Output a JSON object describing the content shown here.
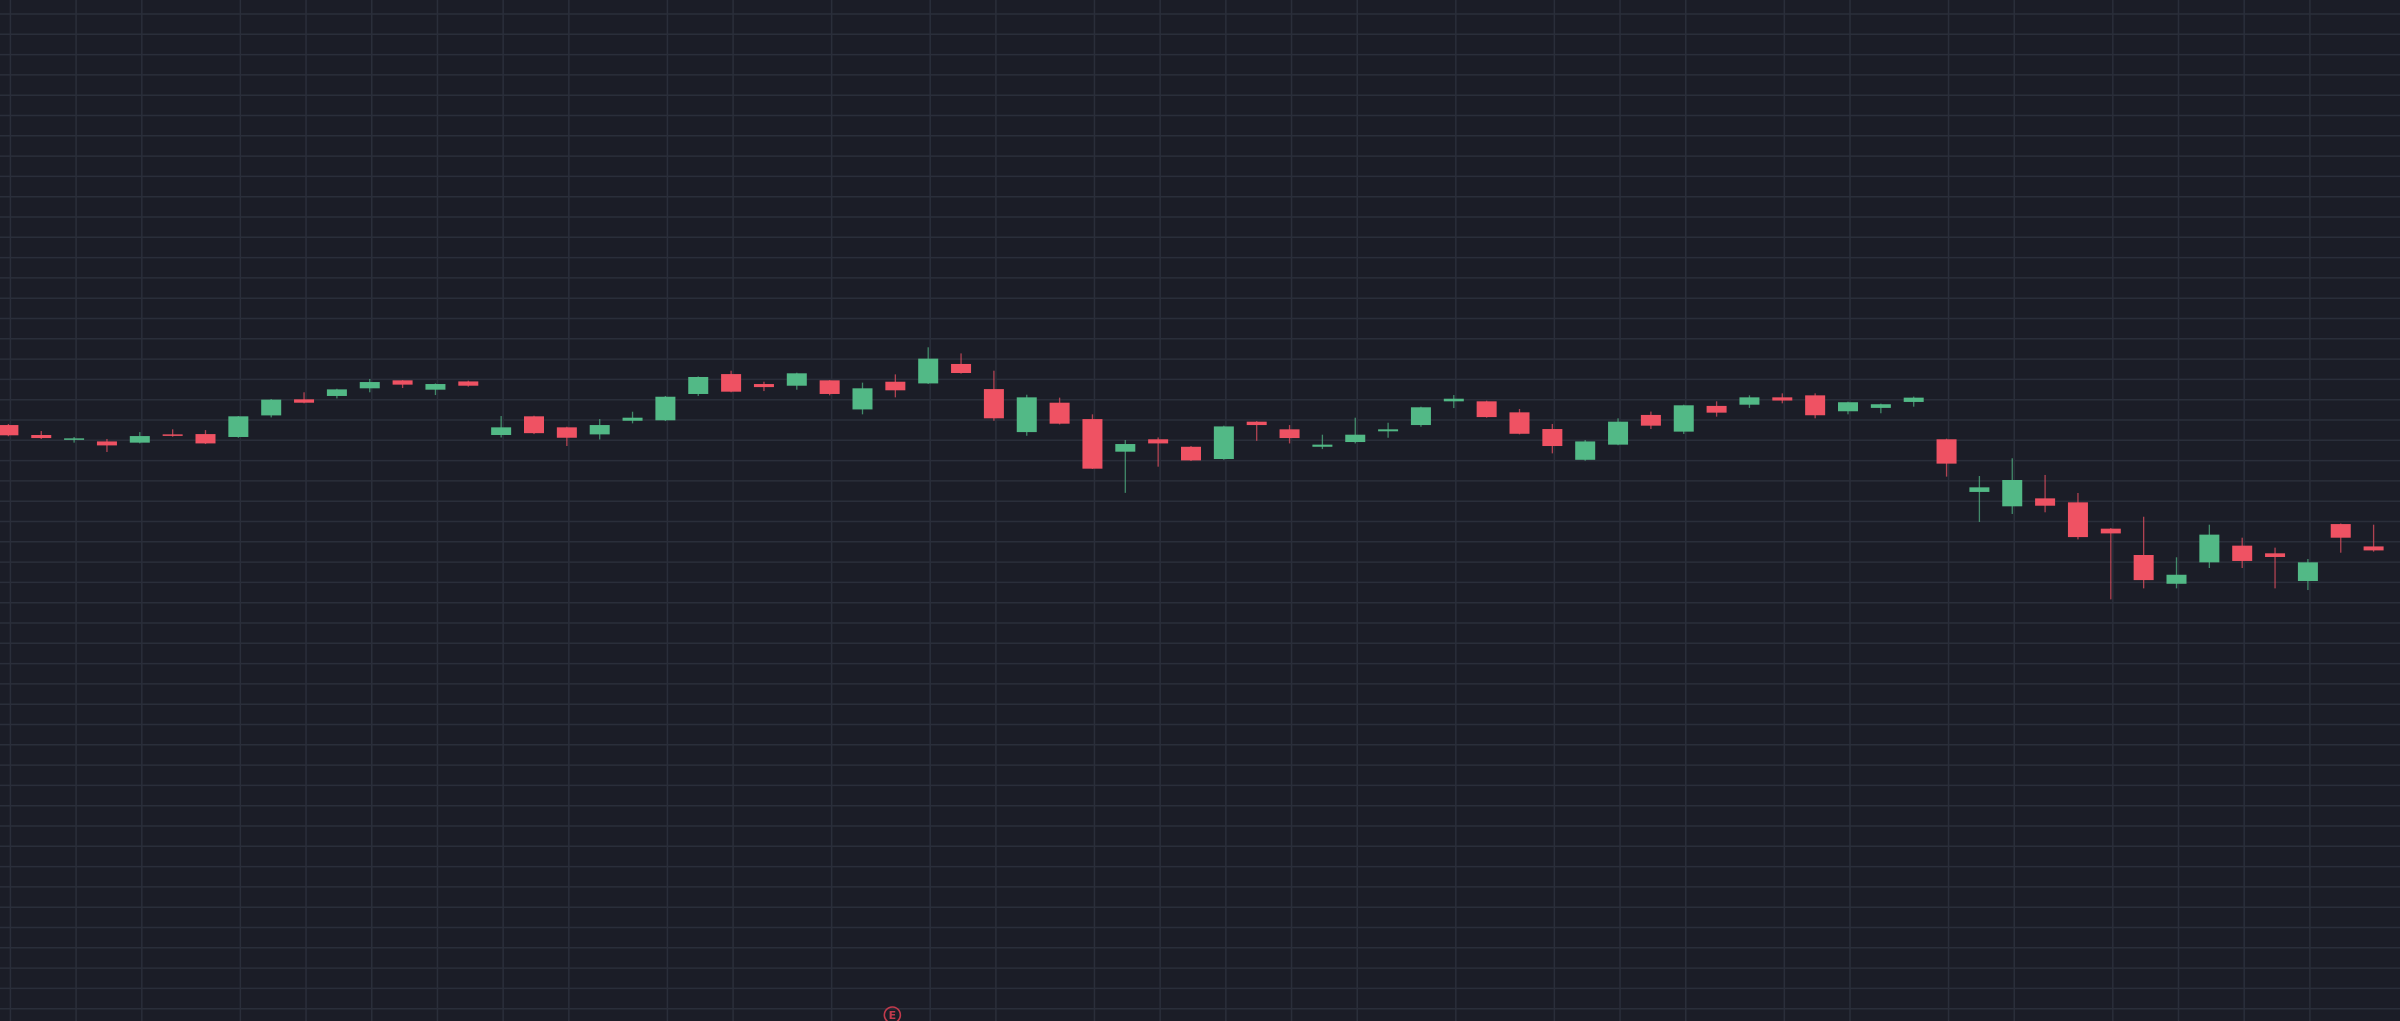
{
  "chart_data": {
    "type": "candlestick",
    "title": "",
    "xlabel": "",
    "ylabel": "",
    "grid": true,
    "axes_visible": false,
    "fields": [
      "open",
      "high",
      "low",
      "close"
    ],
    "candles": [
      [
        389.3,
        390,
        382,
        382.6
      ],
      [
        382.8,
        385.4,
        380.2,
        380.8
      ],
      [
        379.7,
        381.5,
        377.8,
        380.6
      ],
      [
        378.6,
        380.2,
        371.7,
        376
      ],
      [
        377.8,
        384.7,
        377.3,
        382.1
      ],
      [
        383.2,
        386.5,
        381.7,
        382.3
      ],
      [
        383.4,
        386,
        376.9,
        377.3
      ],
      [
        381.5,
        395.2,
        381,
        395
      ],
      [
        395.6,
        406.3,
        394.3,
        405.9
      ],
      [
        406.1,
        410.7,
        403.5,
        403.9
      ],
      [
        408.3,
        413,
        406.7,
        412.6
      ],
      [
        413.3,
        419.4,
        410.7,
        417.4
      ],
      [
        418.5,
        418.7,
        413.5,
        415.7
      ],
      [
        412.4,
        416.5,
        408.9,
        416.1
      ],
      [
        417.8,
        418.3,
        414.4,
        415
      ],
      [
        382.8,
        395.2,
        381.2,
        387.8
      ],
      [
        395,
        395.4,
        383.4,
        384
      ],
      [
        387.8,
        388.2,
        375.6,
        381
      ],
      [
        383.2,
        393.2,
        379.9,
        389.3
      ],
      [
        392.1,
        398,
        390.4,
        394.1
      ],
      [
        392.4,
        408.3,
        391.9,
        407.8
      ],
      [
        409.6,
        421.1,
        408.3,
        420.7
      ],
      [
        422.6,
        424.8,
        410.7,
        411.1
      ],
      [
        416.1,
        417.6,
        411.5,
        414.1
      ],
      [
        415,
        423.5,
        412.4,
        423.1
      ],
      [
        418.5,
        418.7,
        408.7,
        409.6
      ],
      [
        399.5,
        417,
        396.3,
        413.3
      ],
      [
        417.6,
        422.4,
        407.4,
        412
      ],
      [
        416.5,
        440.1,
        416.1,
        432.7
      ],
      [
        429.2,
        436.1,
        422.9,
        423.3
      ],
      [
        412.8,
        424.8,
        392.1,
        393.7
      ],
      [
        384.7,
        409.1,
        382.3,
        407.4
      ],
      [
        403.9,
        407.2,
        389.7,
        390.2
      ],
      [
        393.2,
        396.3,
        360.6,
        360.8
      ],
      [
        371.9,
        379.5,
        345,
        376.9
      ],
      [
        380,
        381.2,
        362.1,
        377.3
      ],
      [
        375.1,
        375.6,
        365.8,
        366.2
      ],
      [
        367.1,
        388.9,
        366.6,
        388.4
      ],
      [
        391.5,
        391.9,
        379,
        389.3
      ],
      [
        386.5,
        389.3,
        377.3,
        380.8
      ],
      [
        375.1,
        383,
        373.6,
        376.5
      ],
      [
        378.2,
        394.1,
        377.3,
        383
      ],
      [
        385.2,
        390.8,
        381,
        386.5
      ],
      [
        389.3,
        401.3,
        388.2,
        400.9
      ],
      [
        404.8,
        408.9,
        400.4,
        406.5
      ],
      [
        404.8,
        405.2,
        394.1,
        394.5
      ],
      [
        397.6,
        399.8,
        383.2,
        383.6
      ],
      [
        386.7,
        390,
        370.8,
        375.6
      ],
      [
        366.6,
        379.5,
        366,
        378.6
      ],
      [
        376.5,
        393.7,
        376.1,
        391.5
      ],
      [
        395.9,
        398.1,
        386.7,
        388.9
      ],
      [
        385,
        402.6,
        383.5,
        402.2
      ],
      [
        401.8,
        404.8,
        394.8,
        397.4
      ],
      [
        402.6,
        408.7,
        400.5,
        407.4
      ],
      [
        407.4,
        410,
        403.5,
        405.3
      ],
      [
        408.7,
        410,
        393.7,
        395.7
      ],
      [
        398.3,
        404.6,
        396.3,
        404.2
      ],
      [
        400.5,
        403.3,
        397,
        402.9
      ],
      [
        404.4,
        407.9,
        401.3,
        407.2
      ],
      [
        380,
        380.4,
        355.6,
        364.1
      ],
      [
        345.6,
        356,
        326,
        348.6
      ],
      [
        336.2,
        367.6,
        331.2,
        353.4
      ],
      [
        341.4,
        356.7,
        332.3,
        336.6
      ],
      [
        338.8,
        344.9,
        314.6,
        316.1
      ],
      [
        321.6,
        322,
        275.4,
        318.5
      ],
      [
        304.4,
        329.4,
        282.6,
        288
      ],
      [
        285.6,
        302.9,
        282.6,
        291.5
      ],
      [
        299.6,
        324.2,
        295.9,
        317.7
      ],
      [
        310.5,
        315.7,
        295.9,
        300.5
      ],
      [
        305.5,
        309.2,
        282.6,
        303.1
      ],
      [
        287.4,
        301.8,
        281.5,
        299.6
      ],
      [
        324.6,
        325,
        305.9,
        315.7
      ],
      [
        310,
        324.2,
        306.6,
        307.4
      ]
    ],
    "colors": {
      "background": "#1b1d27",
      "grid": "#2a2e3a",
      "up": "#52b986",
      "down": "#ef5263"
    },
    "event_marker": {
      "label": "E",
      "candle_index": 27,
      "color": "#c23a4c"
    }
  }
}
